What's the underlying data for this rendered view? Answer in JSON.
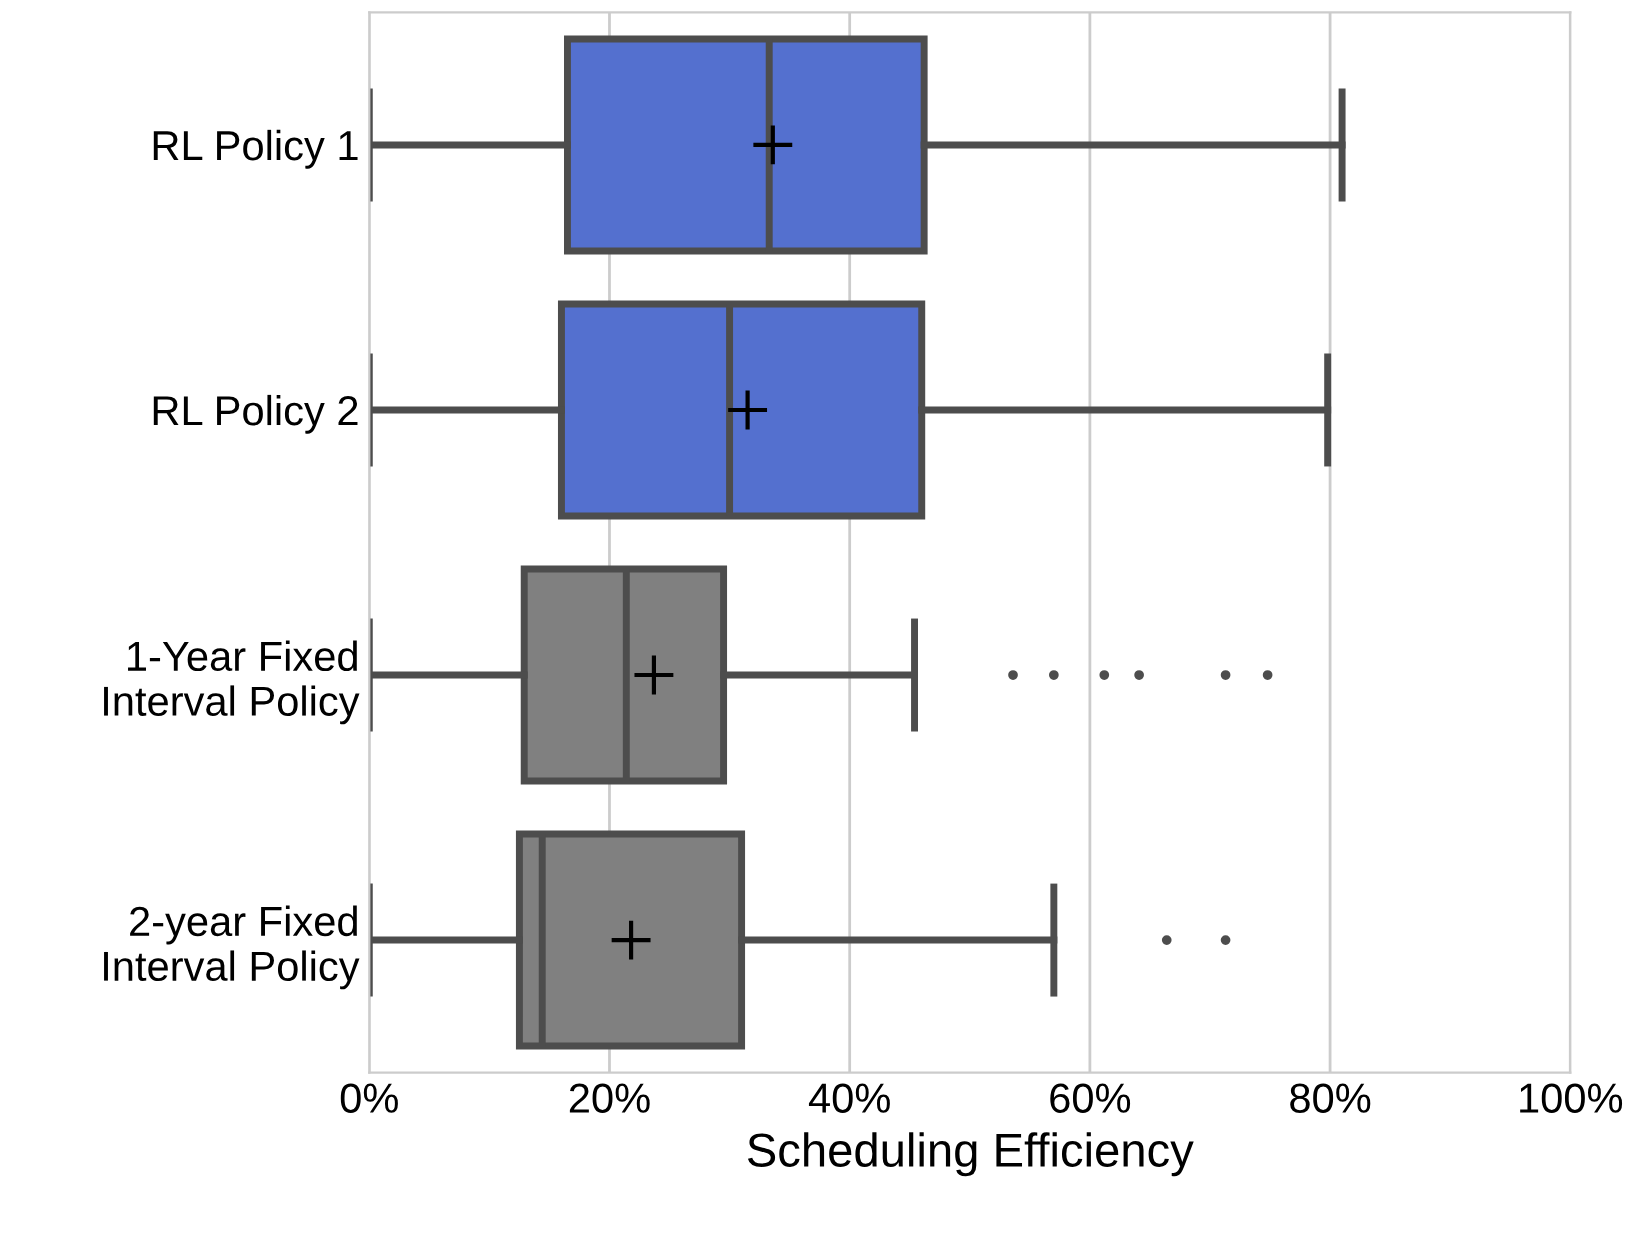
{
  "chart_data": {
    "type": "box",
    "orientation": "horizontal",
    "xlabel": "Scheduling Efficiency",
    "categories": [
      "RL Policy 1",
      "RL Policy 2",
      "1-Year Fixed\nInterval Policy",
      "2-year Fixed\nInterval Policy"
    ],
    "colors": [
      "#5470cf",
      "#5470cf",
      "#808080",
      "#808080"
    ],
    "boxes": [
      {
        "low": 0,
        "q1": 16.5,
        "median": 33.3,
        "q3": 46.2,
        "high": 81.0,
        "mean": 33.6
      },
      {
        "low": 0,
        "q1": 16.0,
        "median": 30.0,
        "q3": 46.0,
        "high": 79.8,
        "mean": 31.5
      },
      {
        "low": 0,
        "q1": 12.9,
        "median": 21.4,
        "q3": 29.5,
        "high": 45.4,
        "mean": 23.7,
        "outliers": [
          53.6,
          57.0,
          61.2,
          64.1,
          71.3,
          74.8
        ]
      },
      {
        "low": 0,
        "q1": 12.5,
        "median": 14.4,
        "q3": 31.0,
        "high": 57.0,
        "mean": 21.8,
        "outliers": [
          66.4,
          71.3
        ]
      }
    ],
    "xlim": [
      0,
      100
    ],
    "xticks": [
      {
        "value": 0,
        "label": "0%"
      },
      {
        "value": 20,
        "label": "20%"
      },
      {
        "value": 40,
        "label": "40%"
      },
      {
        "value": 60,
        "label": "60%"
      },
      {
        "value": 80,
        "label": "80%"
      },
      {
        "value": 100,
        "label": "100%"
      }
    ],
    "grid": "x"
  }
}
